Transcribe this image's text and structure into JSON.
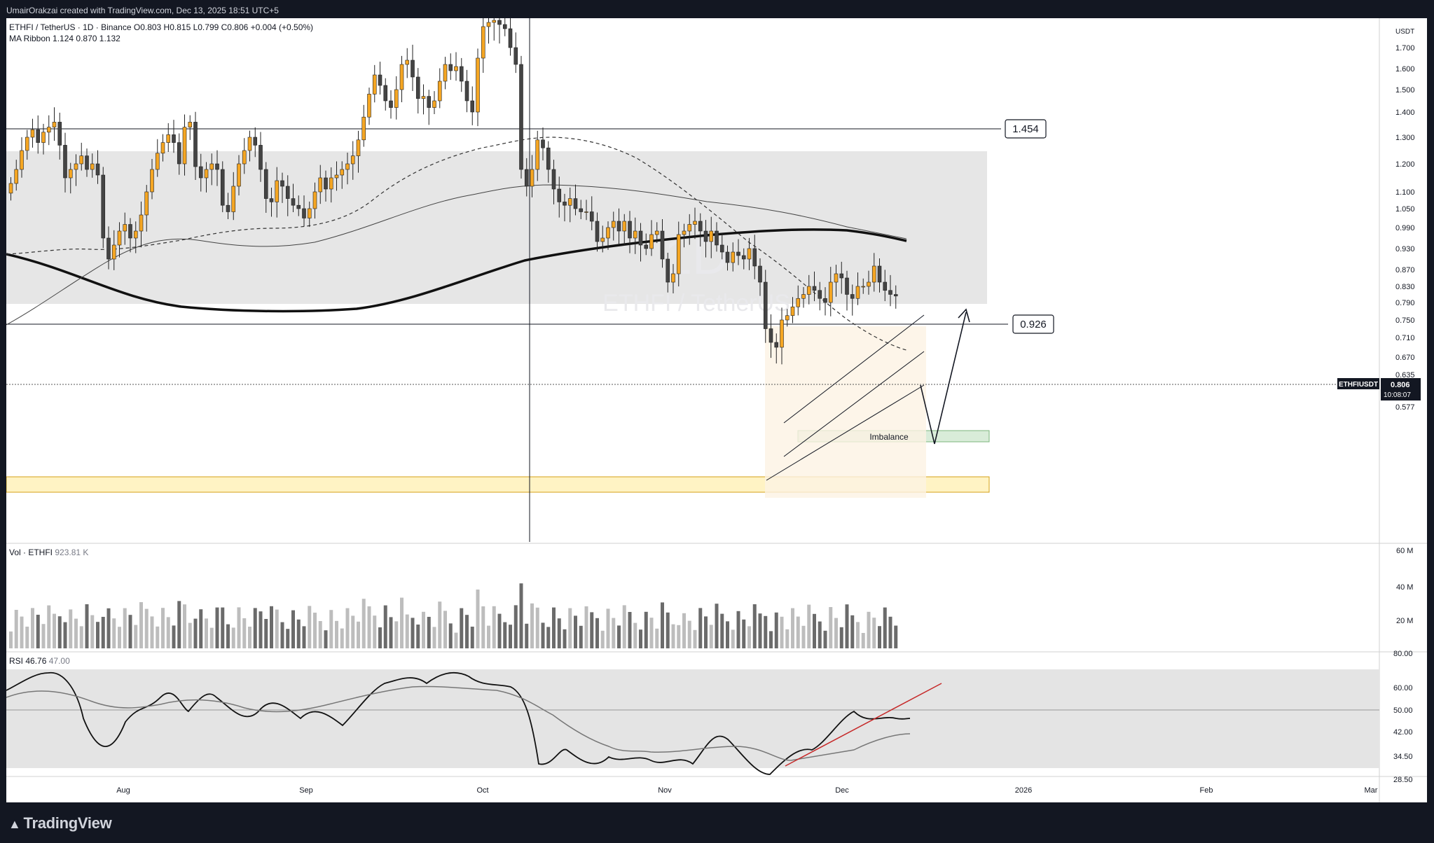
{
  "header": {
    "credit": "UmairOrakzai created with TradingView.com, Dec 13, 2025 18:51 UTC+5"
  },
  "legend": {
    "symbol": "ETHFI / TetherUS · 1D · Binance",
    "ohlc": "O0.803 H0.815 L0.799 C0.806 +0.004 (+0.50%)",
    "ma_label": "MA Ribbon",
    "ma_values": "1.124 0.870 1.132"
  },
  "watermark": {
    "interval": "1D",
    "pair": "ETHFI / TetherUS"
  },
  "volume_pane": {
    "label": "Vol · ETHFI",
    "value": "923.81 K"
  },
  "rsi_pane": {
    "label": "RSI",
    "value1": "46.76",
    "value2": "47.00"
  },
  "price_axis": {
    "currency": "USDT"
  },
  "footer": {
    "brand": "TradingView"
  },
  "colors": {
    "up": "#f5a623",
    "down": "#444444",
    "background": "#ffffff",
    "frame": "#131722",
    "zone": "#e6e6e6",
    "trendline": "#c62828",
    "imbalance": "#d9ecd9",
    "demand": "#fff3c4"
  },
  "chart_data": {
    "type": "candlestick",
    "title": "ETHFI / TetherUS · 1D · Binance",
    "y_ticks": [
      "1.700",
      "1.600",
      "1.500",
      "1.400",
      "1.300",
      "1.200",
      "1.100",
      "1.050",
      "0.990",
      "0.930",
      "0.870",
      "0.830",
      "0.790",
      "0.750",
      "0.710",
      "0.670",
      "0.635",
      "0.605",
      "0.577"
    ],
    "x_ticks": [
      "Aug",
      "Sep",
      "Oct",
      "Nov",
      "Dec",
      "2026",
      "Feb",
      "Mar"
    ],
    "volume_ticks": [
      "60 M",
      "40 M",
      "20 M"
    ],
    "rsi_ticks": [
      "80.00",
      "60.00",
      "50.00",
      "42.00",
      "34.50",
      "28.50"
    ],
    "price_labels": [
      {
        "label": "1.454",
        "value": 1.454
      },
      {
        "label": "0.926",
        "value": 0.926
      }
    ],
    "last_price": {
      "symbol": "ETHFIUSDT",
      "price": "0.806",
      "countdown": "10:08:07"
    },
    "annotations": {
      "imbalance": "Imbalance"
    },
    "closes": [
      1.13,
      1.18,
      1.25,
      1.3,
      1.33,
      1.28,
      1.32,
      1.34,
      1.36,
      1.27,
      1.15,
      1.18,
      1.2,
      1.23,
      1.18,
      1.2,
      1.16,
      0.96,
      0.9,
      0.94,
      0.98,
      1.0,
      0.96,
      0.98,
      1.03,
      1.1,
      1.18,
      1.24,
      1.28,
      1.31,
      1.28,
      1.2,
      1.34,
      1.36,
      1.19,
      1.15,
      1.18,
      1.2,
      1.18,
      1.06,
      1.04,
      1.12,
      1.2,
      1.25,
      1.3,
      1.27,
      1.18,
      1.08,
      1.07,
      1.14,
      1.12,
      1.08,
      1.06,
      1.05,
      1.02,
      1.05,
      1.1,
      1.15,
      1.11,
      1.15,
      1.16,
      1.18,
      1.2,
      1.23,
      1.29,
      1.38,
      1.48,
      1.57,
      1.52,
      1.45,
      1.42,
      1.5,
      1.62,
      1.64,
      1.56,
      1.46,
      1.47,
      1.42,
      1.45,
      1.54,
      1.62,
      1.59,
      1.61,
      1.54,
      1.45,
      1.4,
      1.65,
      1.8,
      1.82,
      1.83,
      1.81,
      1.79,
      1.7,
      1.62,
      1.18,
      1.12,
      1.18,
      1.29,
      1.26,
      1.18,
      1.11,
      1.07,
      1.06,
      1.08,
      1.05,
      1.04,
      1.04,
      1.01,
      0.95,
      0.96,
      0.99,
      1.01,
      0.98,
      1.01,
      0.96,
      0.98,
      0.94,
      0.93,
      0.97,
      0.98,
      0.9,
      0.84,
      0.86,
      0.97,
      0.98,
      1.0,
      1.01,
      0.98,
      0.95,
      0.98,
      0.94,
      0.92,
      0.89,
      0.92,
      0.91,
      0.9,
      0.93,
      0.88,
      0.84,
      0.73,
      0.7,
      0.69,
      0.75,
      0.76,
      0.78,
      0.8,
      0.81,
      0.83,
      0.82,
      0.8,
      0.79,
      0.84,
      0.86,
      0.85,
      0.81,
      0.8,
      0.83,
      0.83,
      0.84,
      0.88,
      0.84,
      0.82,
      0.81,
      0.806
    ]
  }
}
